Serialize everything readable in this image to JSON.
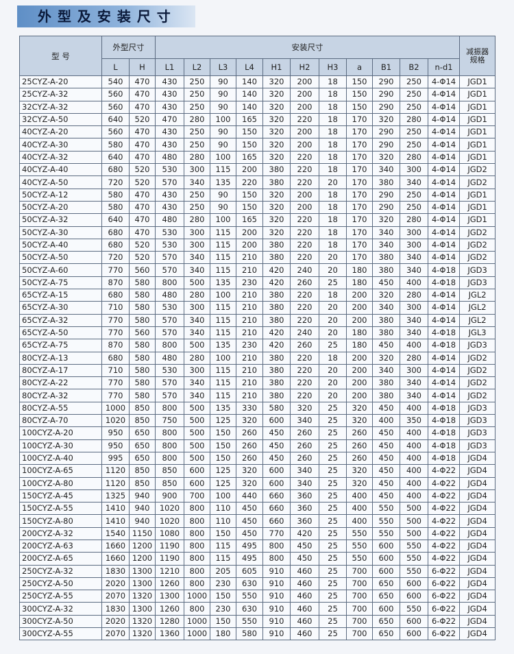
{
  "title": "外 型 及 安 装 尺 寸",
  "header": {
    "model": "型 号",
    "outer": "外型尺寸",
    "install": "安装尺寸",
    "damper": "减振器规格",
    "cols": [
      "L",
      "H",
      "L1",
      "L2",
      "L3",
      "L4",
      "H1",
      "H2",
      "H3",
      "a",
      "B1",
      "B2",
      "n-d1"
    ]
  },
  "rows": [
    [
      "25CYZ-A-20",
      540,
      470,
      430,
      250,
      90,
      140,
      320,
      200,
      18,
      150,
      290,
      250,
      "4-Φ14",
      "JGD1"
    ],
    [
      "25CYZ-A-32",
      560,
      470,
      430,
      250,
      90,
      140,
      320,
      200,
      18,
      150,
      290,
      250,
      "4-Φ14",
      "JGD1"
    ],
    [
      "32CYZ-A-32",
      560,
      470,
      430,
      250,
      90,
      140,
      320,
      200,
      18,
      150,
      290,
      250,
      "4-Φ14",
      "JGD1"
    ],
    [
      "32CYZ-A-50",
      640,
      520,
      470,
      280,
      100,
      165,
      320,
      220,
      18,
      170,
      320,
      280,
      "4-Φ14",
      "JGD1"
    ],
    [
      "40CYZ-A-20",
      560,
      470,
      430,
      250,
      90,
      150,
      320,
      200,
      18,
      170,
      290,
      250,
      "4-Φ14",
      "JGD1"
    ],
    [
      "40CYZ-A-30",
      580,
      470,
      430,
      250,
      90,
      150,
      320,
      200,
      18,
      170,
      290,
      250,
      "4-Φ14",
      "JGD1"
    ],
    [
      "40CYZ-A-32",
      640,
      470,
      480,
      280,
      100,
      165,
      320,
      220,
      18,
      170,
      320,
      280,
      "4-Φ14",
      "JGD1"
    ],
    [
      "40CYZ-A-40",
      680,
      520,
      530,
      300,
      115,
      200,
      380,
      220,
      18,
      170,
      340,
      300,
      "4-Φ14",
      "JGD2"
    ],
    [
      "40CYZ-A-50",
      720,
      520,
      570,
      340,
      135,
      220,
      380,
      220,
      20,
      170,
      380,
      340,
      "4-Φ14",
      "JGD2"
    ],
    [
      "50CYZ-A-12",
      580,
      470,
      430,
      250,
      90,
      150,
      320,
      200,
      18,
      170,
      290,
      250,
      "4-Φ14",
      "JGD1"
    ],
    [
      "50CYZ-A-20",
      580,
      470,
      430,
      250,
      90,
      150,
      320,
      200,
      18,
      170,
      290,
      250,
      "4-Φ14",
      "JGD1"
    ],
    [
      "50CYZ-A-32",
      640,
      470,
      480,
      280,
      100,
      165,
      320,
      220,
      18,
      170,
      320,
      280,
      "4-Φ14",
      "JGD1"
    ],
    [
      "50CYZ-A-30",
      680,
      470,
      530,
      300,
      115,
      200,
      320,
      220,
      18,
      170,
      340,
      300,
      "4-Φ14",
      "JGD2"
    ],
    [
      "50CYZ-A-40",
      680,
      520,
      530,
      300,
      115,
      200,
      380,
      220,
      18,
      170,
      340,
      300,
      "4-Φ14",
      "JGD2"
    ],
    [
      "50CYZ-A-50",
      720,
      520,
      570,
      340,
      115,
      210,
      380,
      220,
      20,
      170,
      380,
      340,
      "4-Φ14",
      "JGD2"
    ],
    [
      "50CYZ-A-60",
      770,
      560,
      570,
      340,
      115,
      210,
      420,
      240,
      20,
      180,
      380,
      340,
      "4-Φ18",
      "JGD3"
    ],
    [
      "50CYZ-A-75",
      870,
      580,
      800,
      500,
      135,
      230,
      420,
      260,
      25,
      180,
      450,
      400,
      "4-Φ18",
      "JGD3"
    ],
    [
      "65CYZ-A-15",
      680,
      580,
      480,
      280,
      100,
      210,
      380,
      220,
      18,
      200,
      320,
      280,
      "4-Φ14",
      "JGL2"
    ],
    [
      "65CYZ-A-30",
      710,
      580,
      530,
      300,
      115,
      210,
      380,
      220,
      20,
      200,
      340,
      300,
      "4-Φ14",
      "JGL2"
    ],
    [
      "65CYZ-A-32",
      770,
      580,
      570,
      340,
      115,
      210,
      380,
      220,
      20,
      200,
      380,
      340,
      "4-Φ14",
      "JGL2"
    ],
    [
      "65CYZ-A-50",
      770,
      560,
      570,
      340,
      115,
      210,
      420,
      240,
      20,
      180,
      380,
      340,
      "4-Φ18",
      "JGL3"
    ],
    [
      "65CYZ-A-75",
      870,
      580,
      800,
      500,
      135,
      230,
      420,
      260,
      25,
      180,
      450,
      400,
      "4-Φ18",
      "JGD3"
    ],
    [
      "80CYZ-A-13",
      680,
      580,
      480,
      280,
      100,
      210,
      380,
      220,
      18,
      200,
      320,
      280,
      "4-Φ14",
      "JGD2"
    ],
    [
      "80CYZ-A-17",
      710,
      580,
      530,
      300,
      115,
      210,
      380,
      220,
      20,
      200,
      340,
      300,
      "4-Φ14",
      "JGD2"
    ],
    [
      "80CYZ-A-22",
      770,
      580,
      570,
      340,
      115,
      210,
      380,
      220,
      20,
      200,
      380,
      340,
      "4-Φ14",
      "JGD2"
    ],
    [
      "80CYZ-A-32",
      770,
      580,
      570,
      340,
      115,
      210,
      380,
      220,
      20,
      200,
      380,
      340,
      "4-Φ14",
      "JGD2"
    ],
    [
      "80CYZ-A-55",
      1000,
      850,
      800,
      500,
      135,
      330,
      580,
      320,
      25,
      320,
      450,
      400,
      "4-Φ18",
      "JGD3"
    ],
    [
      "80CYZ-A-70",
      1020,
      850,
      750,
      500,
      125,
      320,
      600,
      340,
      25,
      320,
      400,
      350,
      "4-Φ18",
      "JGD3"
    ],
    [
      "100CYZ-A-20",
      950,
      650,
      800,
      500,
      150,
      260,
      450,
      260,
      25,
      260,
      450,
      400,
      "4-Φ18",
      "JGD3"
    ],
    [
      "100CYZ-A-30",
      950,
      650,
      800,
      500,
      150,
      260,
      450,
      260,
      25,
      260,
      450,
      400,
      "4-Φ18",
      "JGD3"
    ],
    [
      "100CYZ-A-40",
      995,
      650,
      800,
      500,
      150,
      260,
      450,
      260,
      25,
      260,
      450,
      400,
      "4-Φ18",
      "JGD4"
    ],
    [
      "100CYZ-A-65",
      1120,
      850,
      850,
      600,
      125,
      320,
      600,
      340,
      25,
      320,
      450,
      400,
      "4-Φ22",
      "JGD4"
    ],
    [
      "100CYZ-A-80",
      1120,
      850,
      850,
      600,
      125,
      320,
      600,
      340,
      25,
      320,
      450,
      400,
      "4-Φ22",
      "JGD4"
    ],
    [
      "150CYZ-A-45",
      1325,
      940,
      900,
      700,
      100,
      440,
      660,
      360,
      25,
      400,
      450,
      400,
      "4-Φ22",
      "JGD4"
    ],
    [
      "150CYZ-A-55",
      1410,
      940,
      1020,
      800,
      110,
      450,
      660,
      360,
      25,
      400,
      550,
      500,
      "4-Φ22",
      "JGD4"
    ],
    [
      "150CYZ-A-80",
      1410,
      940,
      1020,
      800,
      110,
      450,
      660,
      360,
      25,
      400,
      550,
      500,
      "4-Φ22",
      "JGD4"
    ],
    [
      "200CYZ-A-32",
      1540,
      1150,
      1080,
      800,
      150,
      450,
      770,
      420,
      25,
      550,
      550,
      500,
      "4-Φ22",
      "JGD4"
    ],
    [
      "200CYZ-A-63",
      1660,
      1200,
      1190,
      800,
      115,
      495,
      800,
      450,
      25,
      550,
      600,
      550,
      "4-Φ22",
      "JGD4"
    ],
    [
      "200CYZ-A-65",
      1660,
      1200,
      1190,
      800,
      115,
      495,
      800,
      450,
      25,
      550,
      600,
      550,
      "4-Φ22",
      "JGD4"
    ],
    [
      "250CYZ-A-32",
      1830,
      1300,
      1210,
      800,
      205,
      605,
      910,
      460,
      25,
      700,
      600,
      550,
      "6-Φ22",
      "JGD4"
    ],
    [
      "250CYZ-A-50",
      2020,
      1300,
      1260,
      800,
      230,
      630,
      910,
      460,
      25,
      700,
      650,
      600,
      "6-Φ22",
      "JGD4"
    ],
    [
      "250CYZ-A-55",
      2070,
      1320,
      1300,
      1000,
      150,
      550,
      910,
      460,
      25,
      700,
      650,
      600,
      "6-Φ22",
      "JGD4"
    ],
    [
      "300CYZ-A-32",
      1830,
      1300,
      1260,
      800,
      230,
      630,
      910,
      460,
      25,
      700,
      600,
      550,
      "6-Φ22",
      "JGD4"
    ],
    [
      "300CYZ-A-50",
      2020,
      1320,
      1280,
      1000,
      150,
      550,
      910,
      460,
      25,
      700,
      650,
      600,
      "6-Φ22",
      "JGD4"
    ],
    [
      "300CYZ-A-55",
      2070,
      1320,
      1360,
      1000,
      180,
      580,
      910,
      460,
      25,
      700,
      650,
      600,
      "6-Φ22",
      "JGD4"
    ]
  ]
}
